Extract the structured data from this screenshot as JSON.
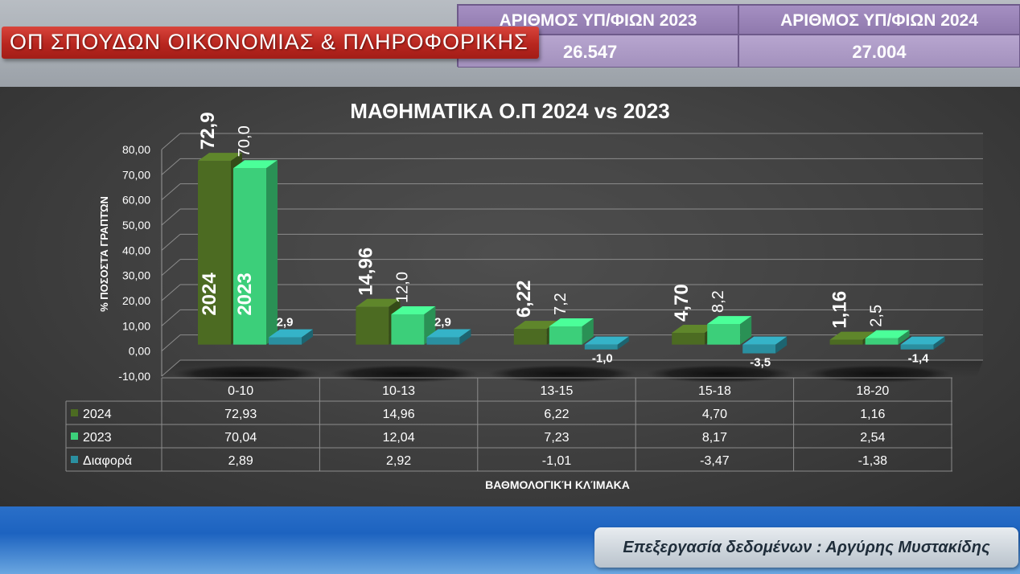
{
  "header": {
    "title": "ΟΠ ΣΠΟΥΔΩΝ ΟΙΚΟΝΟΜΙΑΣ & ΠΛΗΡΟΦΟΡΙΚΗΣ",
    "stats": [
      {
        "label": "ΑΡΙΘΜΟΣ ΥΠ/ΦΙΩΝ 2023",
        "value": "26.547"
      },
      {
        "label": "ΑΡΙΘΜΟΣ ΥΠ/ΦΙΩΝ 2024",
        "value": "27.004"
      }
    ]
  },
  "footer": {
    "credit": "Επεξεργασία δεδομένων : Αργύρης Μυστακίδης"
  },
  "colors": {
    "series_2024": "#4c6b22",
    "series_2023": "#3ccf7a",
    "series_diff": "#2a8fa0",
    "banner_red": "#b8261f",
    "stats_purple": "#9c86b9"
  },
  "chart_data": {
    "type": "bar",
    "title": "ΜΑΘΗΜΑΤΙΚΑ  Ο.Π 2024 vs 2023",
    "xlabel": "ΒΑΘΜΟΛΟΓΙΚΉ ΚΛΊΜΑΚΑ",
    "ylabel": "% ΠΟΣΟΣΤΆ ΓΡΑΠΤΏΝ",
    "ylim": [
      -10,
      80
    ],
    "yticks": [
      "-10,00",
      "0,00",
      "10,00",
      "20,00",
      "30,00",
      "40,00",
      "50,00",
      "60,00",
      "70,00",
      "80,00"
    ],
    "categories": [
      "0-10",
      "10-13",
      "13-15",
      "15-18",
      "18-20"
    ],
    "grid": true,
    "legend": "data-table",
    "series": [
      {
        "name": "2024",
        "values": [
          72.93,
          14.96,
          6.22,
          4.7,
          1.16
        ],
        "bar_labels": [
          "72,9",
          "14,96",
          "6,22",
          "4,70",
          "1,16"
        ],
        "table_values": [
          "72,93",
          "14,96",
          "6,22",
          "4,70",
          "1,16"
        ]
      },
      {
        "name": "2023",
        "values": [
          70.04,
          12.04,
          7.23,
          8.17,
          2.54
        ],
        "bar_labels": [
          "70,0",
          "12,0",
          "7,2",
          "8,2",
          "2,5"
        ],
        "table_values": [
          "70,04",
          "12,04",
          "7,23",
          "8,17",
          "2,54"
        ]
      },
      {
        "name": "Διαφορά",
        "values": [
          2.89,
          2.92,
          -1.01,
          -3.47,
          -1.38
        ],
        "bar_labels": [
          "2,9",
          "2,9",
          "-1,0",
          "-3,5",
          "-1,4"
        ],
        "table_values": [
          "2,89",
          "2,92",
          "-1,01",
          "-3,47",
          "-1,38"
        ]
      }
    ],
    "in_bar_labels": [
      "2024",
      "2023"
    ]
  }
}
